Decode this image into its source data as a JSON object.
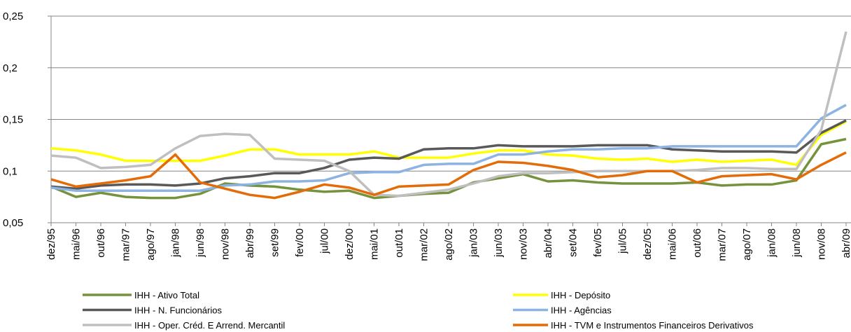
{
  "chart_data": {
    "type": "line",
    "categories": [
      "dez/95",
      "mai/96",
      "out/96",
      "mar/97",
      "ago/97",
      "jan/98",
      "jun/98",
      "nov/98",
      "abr/99",
      "set/99",
      "fev/00",
      "jul/00",
      "dez/00",
      "mai/01",
      "out/01",
      "mar/02",
      "ago/02",
      "jan/03",
      "jun/03",
      "nov/03",
      "abr/04",
      "set/04",
      "fev/05",
      "jul/05",
      "dez/05",
      "mai/06",
      "out/06",
      "mar/07",
      "ago/07",
      "jan/08",
      "jun/08",
      "nov/08",
      "abr/09"
    ],
    "series": [
      {
        "name": "IHH - Ativo Total",
        "color": "#76923c",
        "values": [
          0.085,
          0.075,
          0.079,
          0.075,
          0.074,
          0.074,
          0.078,
          0.088,
          0.086,
          0.085,
          0.082,
          0.08,
          0.081,
          0.074,
          0.076,
          0.078,
          0.079,
          0.089,
          0.093,
          0.097,
          0.09,
          0.091,
          0.089,
          0.088,
          0.088,
          0.088,
          0.089,
          0.086,
          0.087,
          0.087,
          0.091,
          0.126,
          0.131
        ]
      },
      {
        "name": "IHH - Depósito",
        "color": "#ffff00",
        "values": [
          0.122,
          0.12,
          0.116,
          0.11,
          0.11,
          0.11,
          0.11,
          0.115,
          0.121,
          0.121,
          0.116,
          0.116,
          0.116,
          0.119,
          0.113,
          0.113,
          0.113,
          0.117,
          0.12,
          0.12,
          0.116,
          0.115,
          0.112,
          0.111,
          0.112,
          0.109,
          0.111,
          0.109,
          0.11,
          0.111,
          0.106,
          0.135,
          0.148
        ]
      },
      {
        "name": "IHH - N. Funcionários",
        "color": "#595959",
        "values": [
          0.085,
          0.083,
          0.086,
          0.087,
          0.087,
          0.086,
          0.088,
          0.093,
          0.095,
          0.098,
          0.098,
          0.103,
          0.111,
          0.113,
          0.112,
          0.121,
          0.122,
          0.122,
          0.125,
          0.124,
          0.124,
          0.124,
          0.125,
          0.125,
          0.125,
          0.121,
          0.12,
          0.119,
          0.119,
          0.119,
          0.118,
          0.137,
          0.149
        ]
      },
      {
        "name": "IHH - Agências",
        "color": "#8db3e2",
        "values": [
          0.084,
          0.081,
          0.081,
          0.081,
          0.081,
          0.081,
          0.081,
          0.086,
          0.087,
          0.09,
          0.09,
          0.091,
          0.098,
          0.099,
          0.099,
          0.106,
          0.107,
          0.107,
          0.116,
          0.116,
          0.119,
          0.121,
          0.121,
          0.122,
          0.122,
          0.124,
          0.124,
          0.124,
          0.124,
          0.124,
          0.124,
          0.151,
          0.164
        ]
      },
      {
        "name": "IHH - Oper. Créd. E Arrend. Mercantil",
        "color": "#bfbfbf",
        "values": [
          0.115,
          0.113,
          0.103,
          0.104,
          0.106,
          0.122,
          0.134,
          0.136,
          0.135,
          0.112,
          0.111,
          0.11,
          0.1,
          0.077,
          0.076,
          0.079,
          0.082,
          0.088,
          0.095,
          0.098,
          0.098,
          0.099,
          0.1,
          0.1,
          0.1,
          0.1,
          0.101,
          0.103,
          0.103,
          0.102,
          0.102,
          0.14,
          0.235
        ]
      },
      {
        "name": "IHH - TVM e Instrumentos Financeiros Derivativos",
        "color": "#e36c09",
        "values": [
          0.092,
          0.085,
          0.088,
          0.091,
          0.095,
          0.116,
          0.089,
          0.083,
          0.077,
          0.074,
          0.08,
          0.087,
          0.084,
          0.077,
          0.085,
          0.086,
          0.087,
          0.101,
          0.109,
          0.108,
          0.105,
          0.101,
          0.094,
          0.096,
          0.1,
          0.1,
          0.089,
          0.095,
          0.096,
          0.097,
          0.092,
          0.106,
          0.118
        ]
      }
    ],
    "ylim": [
      0.05,
      0.25
    ],
    "yticks": [
      {
        "value": 0.05,
        "label": "0,05"
      },
      {
        "value": 0.1,
        "label": "0,1"
      },
      {
        "value": 0.15,
        "label": "0,15"
      },
      {
        "value": 0.2,
        "label": "0,2"
      },
      {
        "value": 0.25,
        "label": "0,25"
      }
    ],
    "grid": true
  }
}
